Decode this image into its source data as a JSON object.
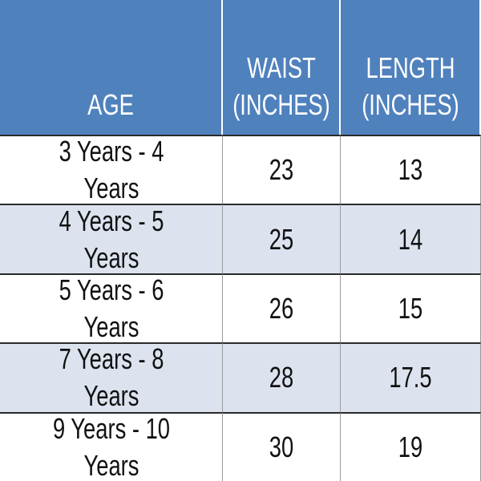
{
  "table": {
    "header": [
      "AGE",
      "WAIST (INCHES)",
      "LENGTH (INCHES)"
    ],
    "rows": [
      [
        "3 Years - 4 Years",
        23,
        13
      ],
      [
        "4 Years - 5 Years",
        25,
        14
      ],
      [
        "5 Years - 6 Years",
        26,
        15
      ],
      [
        "7 Years - 8 Years",
        28,
        17.5
      ],
      [
        "9 Years - 10 Years",
        30,
        19
      ]
    ]
  }
}
